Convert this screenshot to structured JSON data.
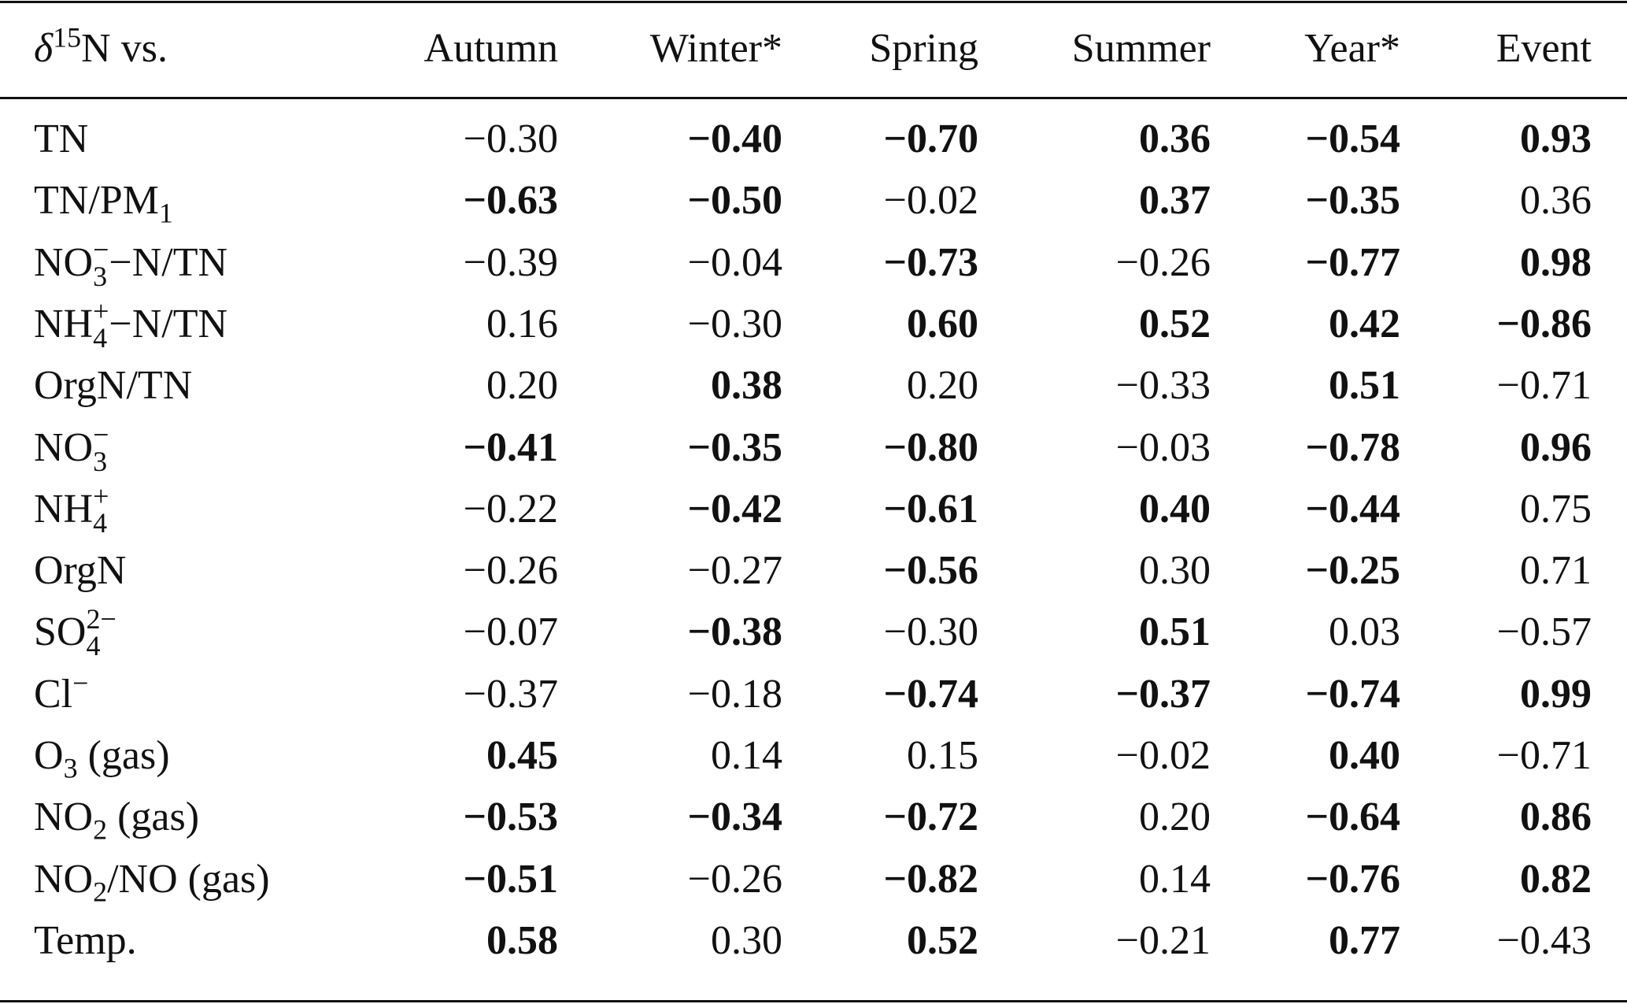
{
  "columns": [
    "Autumn",
    "Winter*",
    "Spring",
    "Summer",
    "Year*",
    "Event"
  ],
  "header_label": [
    {
      "t": "δ",
      "type": "italic"
    },
    {
      "t": "15",
      "type": "sup"
    },
    {
      "t": "N vs.",
      "type": "text"
    }
  ],
  "rows": [
    {
      "label": [
        {
          "t": "TN",
          "type": "text"
        }
      ],
      "values": [
        [
          "−0.30",
          false
        ],
        [
          "−0.40",
          true
        ],
        [
          "−0.70",
          true
        ],
        [
          "0.36",
          true
        ],
        [
          "−0.54",
          true
        ],
        [
          "0.93",
          true
        ]
      ]
    },
    {
      "label": [
        {
          "t": "TN/PM",
          "type": "text"
        },
        {
          "t": "1",
          "type": "sub"
        }
      ],
      "values": [
        [
          "−0.63",
          true
        ],
        [
          "−0.50",
          true
        ],
        [
          "−0.02",
          false
        ],
        [
          "0.37",
          true
        ],
        [
          "−0.35",
          true
        ],
        [
          "0.36",
          false
        ]
      ]
    },
    {
      "label": [
        {
          "t": "NO",
          "type": "text"
        },
        {
          "t": "3",
          "sup": "−",
          "type": "stack"
        },
        {
          "t": "−N/TN",
          "type": "text"
        }
      ],
      "values": [
        [
          "−0.39",
          false
        ],
        [
          "−0.04",
          false
        ],
        [
          "−0.73",
          true
        ],
        [
          "−0.26",
          false
        ],
        [
          "−0.77",
          true
        ],
        [
          "0.98",
          true
        ]
      ]
    },
    {
      "label": [
        {
          "t": "NH",
          "type": "text"
        },
        {
          "t": "4",
          "sup": "+",
          "type": "stack"
        },
        {
          "t": "−N/TN",
          "type": "text"
        }
      ],
      "values": [
        [
          "0.16",
          false
        ],
        [
          "−0.30",
          false
        ],
        [
          "0.60",
          true
        ],
        [
          "0.52",
          true
        ],
        [
          "0.42",
          true
        ],
        [
          "−0.86",
          true
        ]
      ]
    },
    {
      "label": [
        {
          "t": "OrgN/TN",
          "type": "text"
        }
      ],
      "values": [
        [
          "0.20",
          false
        ],
        [
          "0.38",
          true
        ],
        [
          "0.20",
          false
        ],
        [
          "−0.33",
          false
        ],
        [
          "0.51",
          true
        ],
        [
          "−0.71",
          false
        ]
      ]
    },
    {
      "label": [
        {
          "t": "NO",
          "type": "text"
        },
        {
          "t": "3",
          "sup": "−",
          "type": "stack"
        }
      ],
      "values": [
        [
          "−0.41",
          true
        ],
        [
          "−0.35",
          true
        ],
        [
          "−0.80",
          true
        ],
        [
          "−0.03",
          false
        ],
        [
          "−0.78",
          true
        ],
        [
          "0.96",
          true
        ]
      ]
    },
    {
      "label": [
        {
          "t": "NH",
          "type": "text"
        },
        {
          "t": "4",
          "sup": "+",
          "type": "stack"
        }
      ],
      "values": [
        [
          "−0.22",
          false
        ],
        [
          "−0.42",
          true
        ],
        [
          "−0.61",
          true
        ],
        [
          "0.40",
          true
        ],
        [
          "−0.44",
          true
        ],
        [
          "0.75",
          false
        ]
      ]
    },
    {
      "label": [
        {
          "t": "OrgN",
          "type": "text"
        }
      ],
      "values": [
        [
          "−0.26",
          false
        ],
        [
          "−0.27",
          false
        ],
        [
          "−0.56",
          true
        ],
        [
          "0.30",
          false
        ],
        [
          "−0.25",
          true
        ],
        [
          "0.71",
          false
        ]
      ]
    },
    {
      "label": [
        {
          "t": "SO",
          "type": "text"
        },
        {
          "t": "4",
          "sup": "2−",
          "type": "stack"
        }
      ],
      "values": [
        [
          "−0.07",
          false
        ],
        [
          "−0.38",
          true
        ],
        [
          "−0.30",
          false
        ],
        [
          "0.51",
          true
        ],
        [
          "0.03",
          false
        ],
        [
          "−0.57",
          false
        ]
      ]
    },
    {
      "label": [
        {
          "t": "Cl",
          "type": "text"
        },
        {
          "t": "−",
          "type": "sup"
        }
      ],
      "values": [
        [
          "−0.37",
          false
        ],
        [
          "−0.18",
          false
        ],
        [
          "−0.74",
          true
        ],
        [
          "−0.37",
          true
        ],
        [
          "−0.74",
          true
        ],
        [
          "0.99",
          true
        ]
      ]
    },
    {
      "label": [
        {
          "t": "O",
          "type": "text"
        },
        {
          "t": "3",
          "type": "sub"
        },
        {
          "t": " (gas)",
          "type": "text"
        }
      ],
      "values": [
        [
          "0.45",
          true
        ],
        [
          "0.14",
          false
        ],
        [
          "0.15",
          false
        ],
        [
          "−0.02",
          false
        ],
        [
          "0.40",
          true
        ],
        [
          "−0.71",
          false
        ]
      ]
    },
    {
      "label": [
        {
          "t": "NO",
          "type": "text"
        },
        {
          "t": "2",
          "type": "sub"
        },
        {
          "t": " (gas)",
          "type": "text"
        }
      ],
      "values": [
        [
          "−0.53",
          true
        ],
        [
          "−0.34",
          true
        ],
        [
          "−0.72",
          true
        ],
        [
          "0.20",
          false
        ],
        [
          "−0.64",
          true
        ],
        [
          "0.86",
          true
        ]
      ]
    },
    {
      "label": [
        {
          "t": "NO",
          "type": "text"
        },
        {
          "t": "2",
          "type": "sub"
        },
        {
          "t": "/NO (gas)",
          "type": "text"
        }
      ],
      "values": [
        [
          "−0.51",
          true
        ],
        [
          "−0.26",
          false
        ],
        [
          "−0.82",
          true
        ],
        [
          "0.14",
          false
        ],
        [
          "−0.76",
          true
        ],
        [
          "0.82",
          true
        ]
      ]
    },
    {
      "label": [
        {
          "t": "Temp.",
          "type": "text"
        }
      ],
      "values": [
        [
          "0.58",
          true
        ],
        [
          "0.30",
          false
        ],
        [
          "0.52",
          true
        ],
        [
          "−0.21",
          false
        ],
        [
          "0.77",
          true
        ],
        [
          "−0.43",
          false
        ]
      ]
    }
  ]
}
